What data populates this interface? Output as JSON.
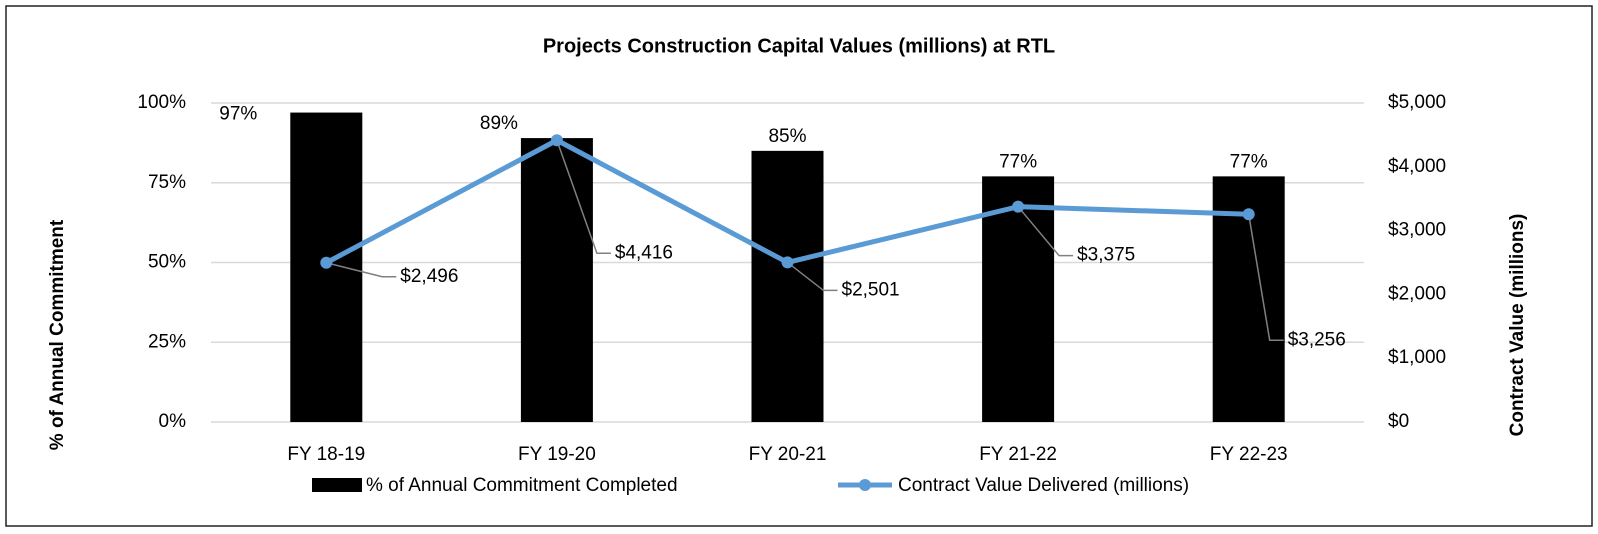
{
  "chart_data": {
    "type": "combo",
    "title": "Projects Construction Capital Values (millions) at RTL",
    "categories": [
      "FY 18-19",
      "FY 19-20",
      "FY 20-21",
      "FY 21-22",
      "FY 22-23"
    ],
    "y_label": "% of Annual Commitment",
    "y2_label": "Contract Value (millions)",
    "ylim": [
      0,
      100
    ],
    "yticks": [
      {
        "value": 0,
        "label": "0%"
      },
      {
        "value": 25,
        "label": "25%"
      },
      {
        "value": 50,
        "label": "50%"
      },
      {
        "value": 75,
        "label": "75%"
      },
      {
        "value": 100,
        "label": "100%"
      }
    ],
    "y2lim": [
      0,
      5000
    ],
    "y2ticks": [
      {
        "value": 0,
        "label": "$0"
      },
      {
        "value": 1000,
        "label": "$1,000"
      },
      {
        "value": 2000,
        "label": "$2,000"
      },
      {
        "value": 3000,
        "label": "$3,000"
      },
      {
        "value": 4000,
        "label": "$4,000"
      },
      {
        "value": 5000,
        "label": "$5,000"
      }
    ],
    "grid": true,
    "legend": "bottom",
    "series": [
      {
        "name": "% of Annual Commitment Completed",
        "type": "bar",
        "color": "#000000",
        "values": [
          97,
          89,
          85,
          77,
          77
        ],
        "value_labels": [
          "97%",
          "89%",
          "85%",
          "77%",
          "77%"
        ]
      },
      {
        "name": "Contract Value Delivered (millions)",
        "type": "line",
        "axis": "y2",
        "color": "#5b9bd5",
        "values": [
          2496,
          4416,
          2501,
          3375,
          3256
        ],
        "value_labels": [
          "$2,496",
          "$4,416",
          "$2,501",
          "$3,375",
          "$3,256"
        ]
      }
    ]
  }
}
